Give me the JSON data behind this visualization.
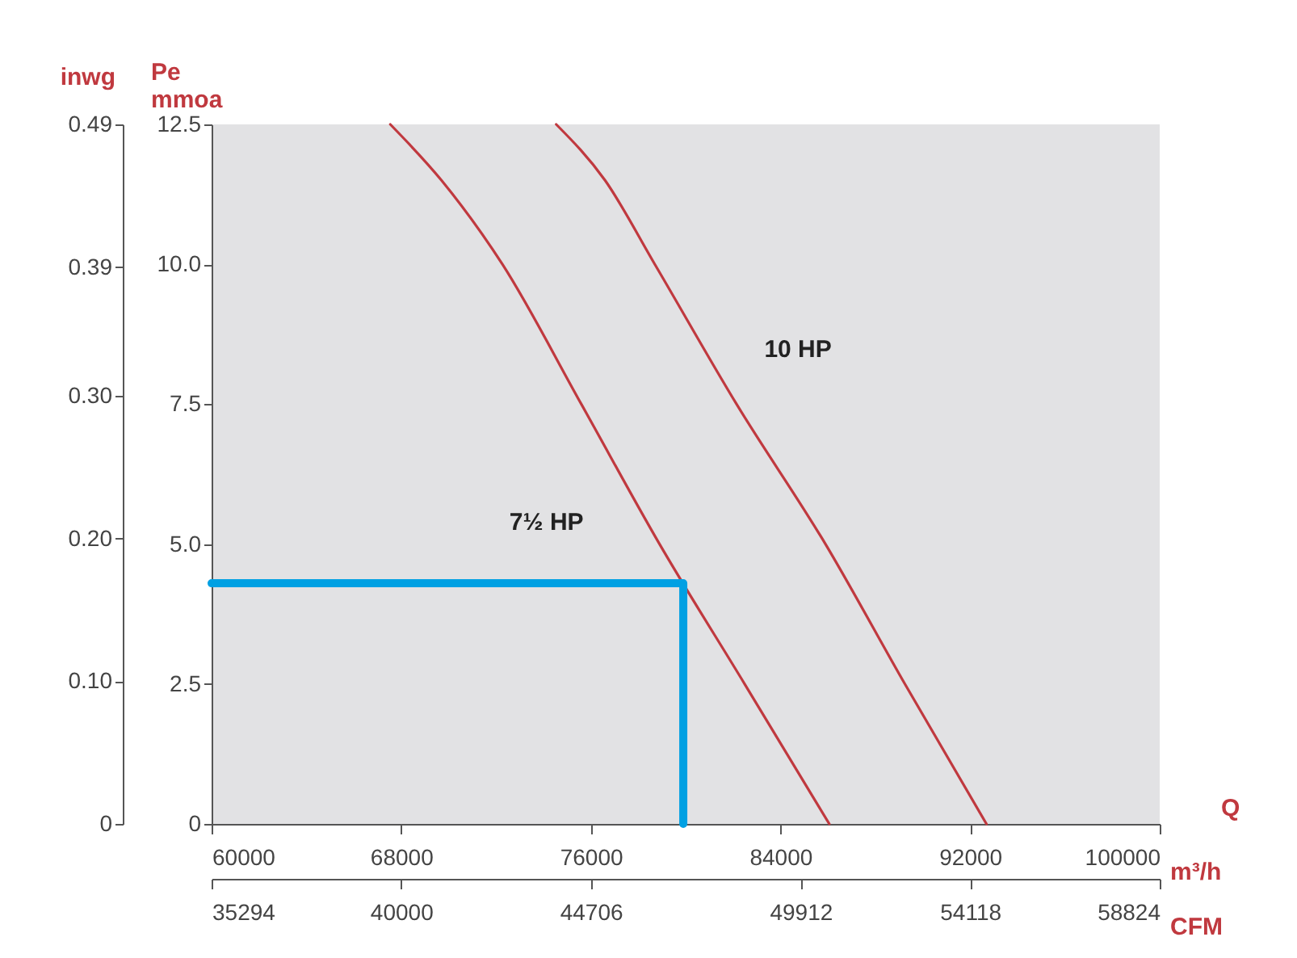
{
  "chart_data": {
    "type": "line",
    "ylabel": "Pe\nmmoa",
    "y2label": "inwg",
    "xlabel": "m³/h",
    "x2label": "CFM",
    "annotations": [
      "Q"
    ],
    "xlim": [
      60000,
      100000
    ],
    "xticks": [
      60000,
      68000,
      76000,
      84000,
      92000,
      100000
    ],
    "x2lim": [
      35294,
      58824
    ],
    "x2ticks": [
      35294,
      40000,
      44706,
      49912,
      54118,
      58824
    ],
    "ylim": [
      0,
      12.5
    ],
    "yticks": [
      0,
      2.5,
      {
        "value": 5,
        "label": "5.0"
      },
      7.5,
      {
        "value": 10,
        "label": "10.0"
      },
      12.5
    ],
    "y2lim": [
      0,
      0.49
    ],
    "y2ticks": [
      0,
      {
        "value": 0.1,
        "label": "0.10"
      },
      {
        "value": 0.2,
        "label": "0.20"
      },
      {
        "value": 0.3,
        "label": "0.30"
      },
      0.39,
      0.49
    ],
    "grid": false,
    "marker": "none",
    "line_style": "solid",
    "series": [
      {
        "name": "7½ HP",
        "color": "#c0393f",
        "x": [
          67540,
          69700,
          72270,
          75600,
          78900,
          82490,
          86060
        ],
        "values": [
          12.5,
          11.5,
          10,
          7.5,
          5,
          2.5,
          0
        ]
      },
      {
        "name": "10 HP",
        "color": "#c0393f",
        "x": [
          74540,
          76600,
          78700,
          82150,
          85900,
          89250,
          92690
        ],
        "values": [
          12.5,
          11.5,
          10,
          7.5,
          5,
          2.5,
          0
        ]
      },
      {
        "color": "#00a0e3",
        "x": [
          60000,
          79900,
          79900
        ],
        "values": [
          4.3,
          4.3,
          0
        ]
      }
    ]
  }
}
